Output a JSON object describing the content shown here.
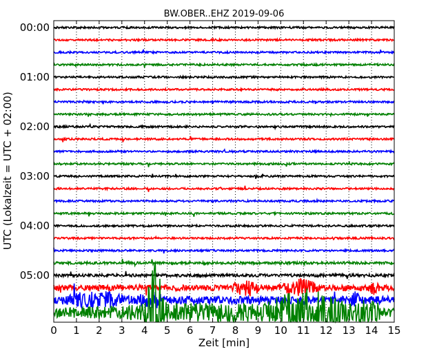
{
  "chart_data": {
    "type": "line",
    "title": "BW.OBER..EHZ 2019-09-06",
    "xlabel": "Zeit  [min]",
    "ylabel": "UTC (Lokalzeit = UTC + 02:00)",
    "xlim": [
      0,
      15
    ],
    "x_ticks": [
      "0",
      "1",
      "2",
      "3",
      "4",
      "5",
      "6",
      "7",
      "8",
      "9",
      "10",
      "11",
      "12",
      "13",
      "14",
      "15"
    ],
    "y_tick_labels": [
      "00:00",
      "01:00",
      "02:00",
      "03:00",
      "04:00",
      "05:00"
    ],
    "grid": "vertical dotted",
    "traces_per_hour": 4,
    "trace_minutes": 15,
    "color_cycle": [
      "#000000",
      "#ff0000",
      "#0000ff",
      "#008000"
    ],
    "series": [
      {
        "start": "00:00",
        "color": "#000000",
        "amplitude": 1
      },
      {
        "start": "00:15",
        "color": "#ff0000",
        "amplitude": 1
      },
      {
        "start": "00:30",
        "color": "#0000ff",
        "amplitude": 1
      },
      {
        "start": "00:45",
        "color": "#008000",
        "amplitude": 1
      },
      {
        "start": "01:00",
        "color": "#000000",
        "amplitude": 1
      },
      {
        "start": "01:15",
        "color": "#ff0000",
        "amplitude": 1
      },
      {
        "start": "01:30",
        "color": "#0000ff",
        "amplitude": 1
      },
      {
        "start": "01:45",
        "color": "#008000",
        "amplitude": 1
      },
      {
        "start": "02:00",
        "color": "#000000",
        "amplitude": 1
      },
      {
        "start": "02:15",
        "color": "#ff0000",
        "amplitude": 1
      },
      {
        "start": "02:30",
        "color": "#0000ff",
        "amplitude": 1
      },
      {
        "start": "02:45",
        "color": "#008000",
        "amplitude": 1
      },
      {
        "start": "03:00",
        "color": "#000000",
        "amplitude": 1
      },
      {
        "start": "03:15",
        "color": "#ff0000",
        "amplitude": 1
      },
      {
        "start": "03:30",
        "color": "#0000ff",
        "amplitude": 1
      },
      {
        "start": "03:45",
        "color": "#008000",
        "amplitude": 1
      },
      {
        "start": "04:00",
        "color": "#000000",
        "amplitude": 1
      },
      {
        "start": "04:15",
        "color": "#ff0000",
        "amplitude": 1
      },
      {
        "start": "04:30",
        "color": "#0000ff",
        "amplitude": 1
      },
      {
        "start": "04:45",
        "color": "#008000",
        "amplitude": 1.3
      },
      {
        "start": "05:00",
        "color": "#000000",
        "amplitude": 1.5
      },
      {
        "start": "05:15",
        "color": "#ff0000",
        "amplitude": 3
      },
      {
        "start": "05:30",
        "color": "#0000ff",
        "amplitude": 4
      },
      {
        "start": "05:45",
        "color": "#008000",
        "amplitude": 5
      }
    ]
  }
}
